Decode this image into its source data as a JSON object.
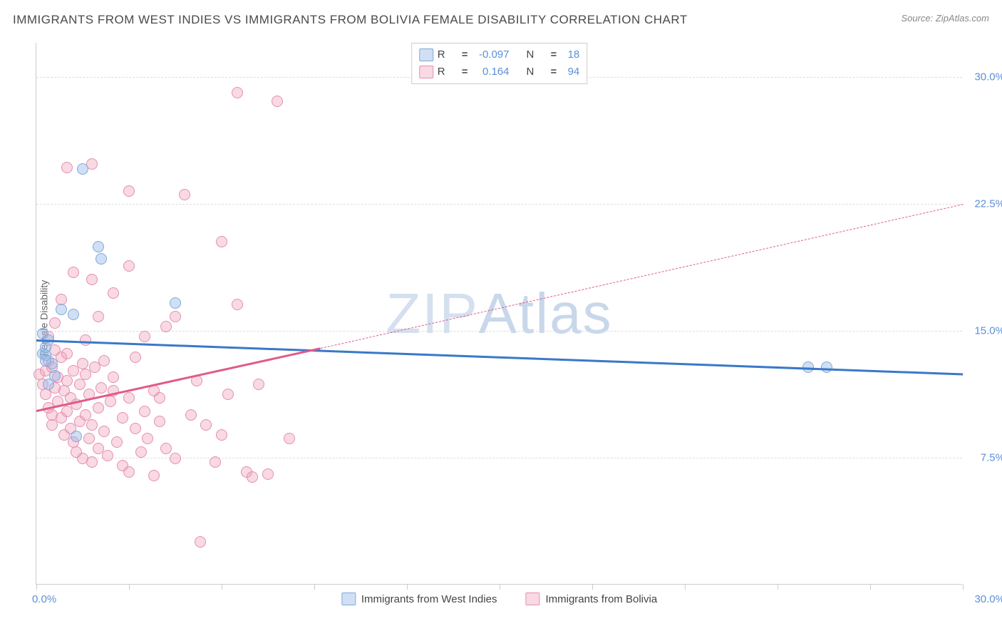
{
  "title": "IMMIGRANTS FROM WEST INDIES VS IMMIGRANTS FROM BOLIVIA FEMALE DISABILITY CORRELATION CHART",
  "source_label": "Source: ",
  "source_name": "ZipAtlas.com",
  "ylabel": "Female Disability",
  "watermark": {
    "part1": "ZIP",
    "part2": "Atlas"
  },
  "chart": {
    "type": "scatter",
    "xlim": [
      0,
      30
    ],
    "ylim": [
      0,
      32
    ],
    "yticks": [
      {
        "value": 7.5,
        "label": "7.5%"
      },
      {
        "value": 15.0,
        "label": "15.0%"
      },
      {
        "value": 22.5,
        "label": "22.5%"
      },
      {
        "value": 30.0,
        "label": "30.0%"
      }
    ],
    "xtick_positions": [
      0,
      3,
      6,
      9,
      12,
      15,
      18,
      21,
      24,
      27,
      30
    ],
    "xlim_labels": {
      "min": "0.0%",
      "max": "30.0%"
    },
    "background_color": "#ffffff",
    "grid_color": "#dddddd",
    "axis_color": "#cccccc",
    "tick_label_color": "#5b8fd8",
    "series": [
      {
        "key": "west_indies",
        "label": "Immigrants from West Indies",
        "fill": "rgba(150,185,230,0.45)",
        "stroke": "#7fa9dc",
        "marker_size": 16,
        "R_label": "R",
        "R_value": "-0.097",
        "N_label": "N",
        "N_value": "18",
        "regression": {
          "color": "#3a78c9",
          "solid": {
            "x1": 0,
            "y1": 14.5,
            "x2": 30,
            "y2": 12.5
          }
        },
        "points": [
          [
            0.2,
            13.6
          ],
          [
            0.3,
            13.5
          ],
          [
            0.3,
            14.0
          ],
          [
            0.4,
            11.8
          ],
          [
            0.8,
            16.2
          ],
          [
            1.2,
            15.9
          ],
          [
            1.5,
            24.5
          ],
          [
            2.0,
            19.9
          ],
          [
            2.1,
            19.2
          ],
          [
            1.3,
            8.7
          ],
          [
            0.6,
            12.3
          ],
          [
            0.5,
            13.0
          ],
          [
            4.5,
            16.6
          ],
          [
            25.0,
            12.8
          ],
          [
            25.6,
            12.8
          ],
          [
            0.2,
            14.8
          ],
          [
            0.3,
            13.2
          ],
          [
            0.4,
            14.4
          ]
        ]
      },
      {
        "key": "bolivia",
        "label": "Immigrants from Bolivia",
        "fill": "rgba(240,160,185,0.40)",
        "stroke": "#e48fb0",
        "marker_size": 16,
        "R_label": "R",
        "R_value": "0.164",
        "N_label": "N",
        "N_value": "94",
        "regression": {
          "color": "#e05a8a",
          "solid": {
            "x1": 0,
            "y1": 10.3,
            "x2": 9.2,
            "y2": 14.0
          },
          "dashed": {
            "x1": 9.2,
            "y1": 14.0,
            "x2": 30.0,
            "y2": 22.5
          }
        },
        "points": [
          [
            0.1,
            12.4
          ],
          [
            0.2,
            11.8
          ],
          [
            0.3,
            11.2
          ],
          [
            0.3,
            12.6
          ],
          [
            0.4,
            10.4
          ],
          [
            0.4,
            13.2
          ],
          [
            0.5,
            12.8
          ],
          [
            0.5,
            10.0
          ],
          [
            0.5,
            9.4
          ],
          [
            0.6,
            11.6
          ],
          [
            0.6,
            13.8
          ],
          [
            0.7,
            10.8
          ],
          [
            0.7,
            12.2
          ],
          [
            0.8,
            9.8
          ],
          [
            0.8,
            13.4
          ],
          [
            0.9,
            11.4
          ],
          [
            0.9,
            8.8
          ],
          [
            1.0,
            12.0
          ],
          [
            1.0,
            10.2
          ],
          [
            1.0,
            13.6
          ],
          [
            1.1,
            9.2
          ],
          [
            1.1,
            11.0
          ],
          [
            1.2,
            12.6
          ],
          [
            1.2,
            8.4
          ],
          [
            1.3,
            10.6
          ],
          [
            1.3,
            7.8
          ],
          [
            1.4,
            11.8
          ],
          [
            1.4,
            9.6
          ],
          [
            1.5,
            13.0
          ],
          [
            1.5,
            7.4
          ],
          [
            1.6,
            10.0
          ],
          [
            1.6,
            12.4
          ],
          [
            1.7,
            8.6
          ],
          [
            1.7,
            11.2
          ],
          [
            1.8,
            9.4
          ],
          [
            1.8,
            7.2
          ],
          [
            1.9,
            12.8
          ],
          [
            2.0,
            10.4
          ],
          [
            2.0,
            8.0
          ],
          [
            2.1,
            11.6
          ],
          [
            2.2,
            9.0
          ],
          [
            2.3,
            7.6
          ],
          [
            2.4,
            10.8
          ],
          [
            2.5,
            12.2
          ],
          [
            2.6,
            8.4
          ],
          [
            2.8,
            9.8
          ],
          [
            2.8,
            7.0
          ],
          [
            3.0,
            11.0
          ],
          [
            3.0,
            6.6
          ],
          [
            3.2,
            9.2
          ],
          [
            3.2,
            13.4
          ],
          [
            3.4,
            7.8
          ],
          [
            3.5,
            10.2
          ],
          [
            3.6,
            8.6
          ],
          [
            3.8,
            6.4
          ],
          [
            3.8,
            11.4
          ],
          [
            4.0,
            9.6
          ],
          [
            4.2,
            8.0
          ],
          [
            4.2,
            15.2
          ],
          [
            4.5,
            7.4
          ],
          [
            4.5,
            15.8
          ],
          [
            2.0,
            15.8
          ],
          [
            2.5,
            17.2
          ],
          [
            1.8,
            18.0
          ],
          [
            1.2,
            18.4
          ],
          [
            3.0,
            18.8
          ],
          [
            1.6,
            14.4
          ],
          [
            5.0,
            10.0
          ],
          [
            4.8,
            23.0
          ],
          [
            5.2,
            12.0
          ],
          [
            5.3,
            2.5
          ],
          [
            5.5,
            9.4
          ],
          [
            6.0,
            20.2
          ],
          [
            6.2,
            11.2
          ],
          [
            6.5,
            29.0
          ],
          [
            6.8,
            6.6
          ],
          [
            7.0,
            6.3
          ],
          [
            7.2,
            11.8
          ],
          [
            7.5,
            6.5
          ],
          [
            6.0,
            8.8
          ],
          [
            5.8,
            7.2
          ],
          [
            6.5,
            16.5
          ],
          [
            8.2,
            8.6
          ],
          [
            7.8,
            28.5
          ],
          [
            3.0,
            23.2
          ],
          [
            1.8,
            24.8
          ],
          [
            2.5,
            11.4
          ],
          [
            3.5,
            14.6
          ],
          [
            4.0,
            11.0
          ],
          [
            2.2,
            13.2
          ],
          [
            1.0,
            24.6
          ],
          [
            0.4,
            14.6
          ],
          [
            0.6,
            15.4
          ],
          [
            0.8,
            16.8
          ]
        ]
      }
    ]
  }
}
